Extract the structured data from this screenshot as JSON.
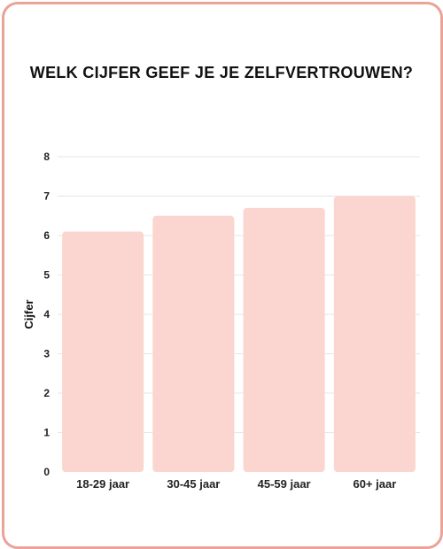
{
  "chart_data": {
    "type": "bar",
    "title": "WELK CIJFER GEEF JE JE ZELFVERTROUWEN?",
    "xlabel": "",
    "ylabel": "Cijfer",
    "categories": [
      "18-29 jaar",
      "30-45 jaar",
      "45-59 jaar",
      "60+ jaar"
    ],
    "values": [
      6.1,
      6.5,
      6.7,
      7.0
    ],
    "ylim": [
      0,
      8
    ],
    "yticks": [
      "0",
      "1",
      "2",
      "3",
      "4",
      "5",
      "6",
      "7",
      "8"
    ],
    "grid": true,
    "legend": "none",
    "colors": {
      "bar": "#fbd5cf",
      "border": "#e9a397",
      "grid": "#e6e6e6"
    }
  }
}
